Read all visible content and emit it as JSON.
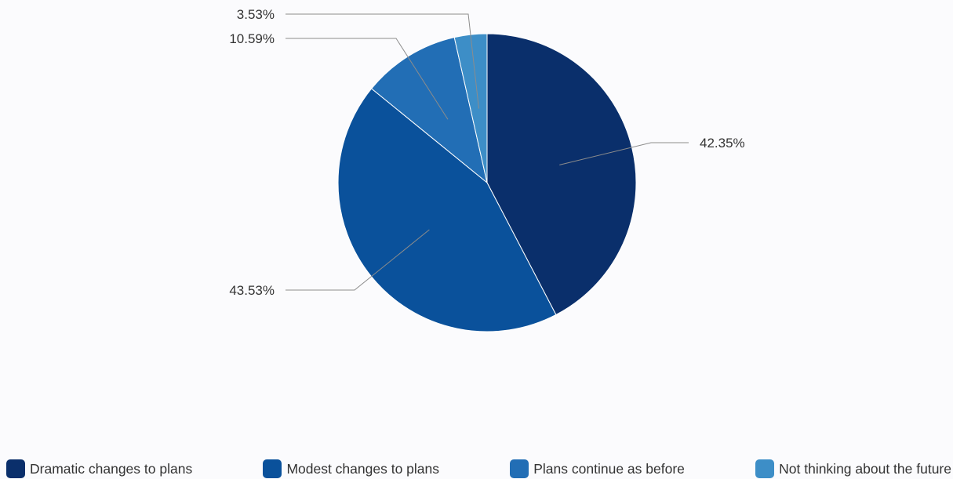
{
  "chart_data": {
    "type": "pie",
    "title": "",
    "series": [
      {
        "name": "Dramatic changes to plans",
        "value": 42.35,
        "label": "42.35%",
        "color": "#0a2f6b"
      },
      {
        "name": "Modest changes to plans",
        "value": 43.53,
        "label": "43.53%",
        "color": "#0a519b"
      },
      {
        "name": "Plans continue as before",
        "value": 10.59,
        "label": "10.59%",
        "color": "#226eb5"
      },
      {
        "name": "Not thinking about the future",
        "value": 3.53,
        "label": "3.53%",
        "color": "#3d8ec7"
      }
    ],
    "start_angle": "12 o'clock",
    "direction": "clockwise",
    "legend": {
      "position": "bottom"
    }
  }
}
